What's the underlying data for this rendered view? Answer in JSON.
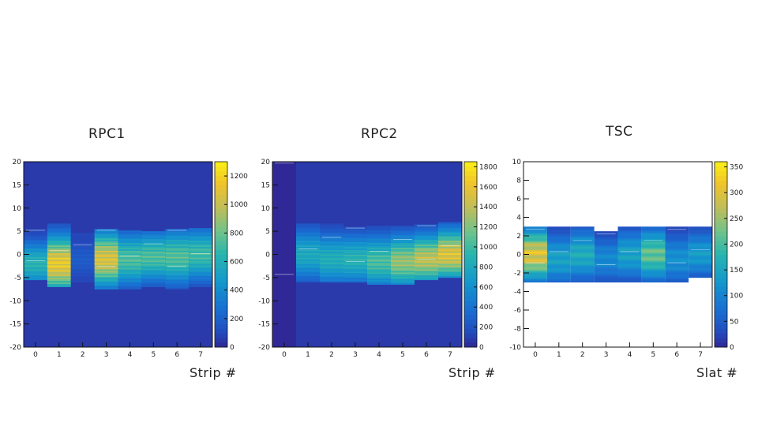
{
  "chart_data": [
    {
      "type": "heatmap",
      "title": "RPC1",
      "xlabel": "Strip #",
      "ylabel": "",
      "xlim": [
        -0.5,
        7.5
      ],
      "ylim": [
        -20,
        20
      ],
      "x_ticks": [
        0,
        1,
        2,
        3,
        4,
        5,
        6,
        7
      ],
      "y_ticks": [
        -20,
        -15,
        -10,
        -5,
        0,
        5,
        10,
        15,
        20
      ],
      "z_ticks": [
        0,
        200,
        400,
        600,
        800,
        1000,
        1200
      ],
      "zmax": 1300,
      "bins": [
        {
          "x": 0,
          "ymin": -5.5,
          "ymax": 5.5,
          "peak": 700,
          "center": -2
        },
        {
          "x": 1,
          "ymin": -7,
          "ymax": 6.5,
          "peak": 1250,
          "center": -2
        },
        {
          "x": 2,
          "ymin": -6,
          "ymax": 4.5,
          "peak": 200,
          "center": -1
        },
        {
          "x": 3,
          "ymin": -7.5,
          "ymax": 5.5,
          "peak": 1180,
          "center": -1
        },
        {
          "x": 4,
          "ymin": -7.5,
          "ymax": 5,
          "peak": 820,
          "center": -1
        },
        {
          "x": 5,
          "ymin": -7,
          "ymax": 5,
          "peak": 820,
          "center": -0.5
        },
        {
          "x": 6,
          "ymin": -7.5,
          "ymax": 5.5,
          "peak": 830,
          "center": -0.5
        },
        {
          "x": 7,
          "ymin": -7,
          "ymax": 5.5,
          "peak": 780,
          "center": 0
        }
      ]
    },
    {
      "type": "heatmap",
      "title": "RPC2",
      "xlabel": "Strip #",
      "ylabel": "",
      "xlim": [
        -0.5,
        7.5
      ],
      "ylim": [
        -20,
        20
      ],
      "x_ticks": [
        0,
        1,
        2,
        3,
        4,
        5,
        6,
        7
      ],
      "y_ticks": [
        -20,
        -15,
        -10,
        -5,
        0,
        5,
        10,
        15,
        20
      ],
      "z_ticks": [
        0,
        200,
        400,
        600,
        800,
        1000,
        1200,
        1400,
        1600,
        1800
      ],
      "zmax": 1850,
      "bins": [
        {
          "x": 0,
          "ymin": -20,
          "ymax": 20,
          "peak": 90,
          "center": 0
        },
        {
          "x": 1,
          "ymin": -6,
          "ymax": 6.5,
          "peak": 900,
          "center": 0
        },
        {
          "x": 2,
          "ymin": -6,
          "ymax": 6.5,
          "peak": 950,
          "center": -1
        },
        {
          "x": 3,
          "ymin": -6,
          "ymax": 6,
          "peak": 1000,
          "center": -1
        },
        {
          "x": 4,
          "ymin": -6.5,
          "ymax": 6,
          "peak": 1150,
          "center": -1.5
        },
        {
          "x": 5,
          "ymin": -6.5,
          "ymax": 6,
          "peak": 1400,
          "center": -1.5
        },
        {
          "x": 6,
          "ymin": -5.5,
          "ymax": 6.5,
          "peak": 1550,
          "center": -1
        },
        {
          "x": 7,
          "ymin": -5,
          "ymax": 7,
          "peak": 1700,
          "center": 0
        }
      ]
    },
    {
      "type": "heatmap",
      "title": "TSC",
      "xlabel": "Slat #",
      "ylabel": "",
      "xlim": [
        -0.5,
        7.5
      ],
      "ylim": [
        -10,
        10
      ],
      "x_ticks": [
        0,
        1,
        2,
        3,
        4,
        5,
        6,
        7
      ],
      "y_ticks": [
        -10,
        -8,
        -6,
        -4,
        -2,
        0,
        2,
        4,
        6,
        8,
        10
      ],
      "z_ticks": [
        0,
        50,
        100,
        150,
        200,
        250,
        300,
        350
      ],
      "zmax": 360,
      "bins": [
        {
          "x": 0,
          "ymin": -3,
          "ymax": 3,
          "peak": 330,
          "center": 0
        },
        {
          "x": 1,
          "ymin": -3,
          "ymax": 3,
          "peak": 160,
          "center": -0.5
        },
        {
          "x": 2,
          "ymin": -3,
          "ymax": 3,
          "peak": 180,
          "center": 0
        },
        {
          "x": 3,
          "ymin": -3,
          "ymax": 2.5,
          "peak": 120,
          "center": -0.5
        },
        {
          "x": 4,
          "ymin": -3,
          "ymax": 3,
          "peak": 160,
          "center": 0
        },
        {
          "x": 5,
          "ymin": -3,
          "ymax": 3,
          "peak": 240,
          "center": 0
        },
        {
          "x": 6,
          "ymin": -3,
          "ymax": 3,
          "peak": 130,
          "center": -0.5
        },
        {
          "x": 7,
          "ymin": -2.5,
          "ymax": 3,
          "peak": 150,
          "center": 0
        }
      ]
    }
  ]
}
